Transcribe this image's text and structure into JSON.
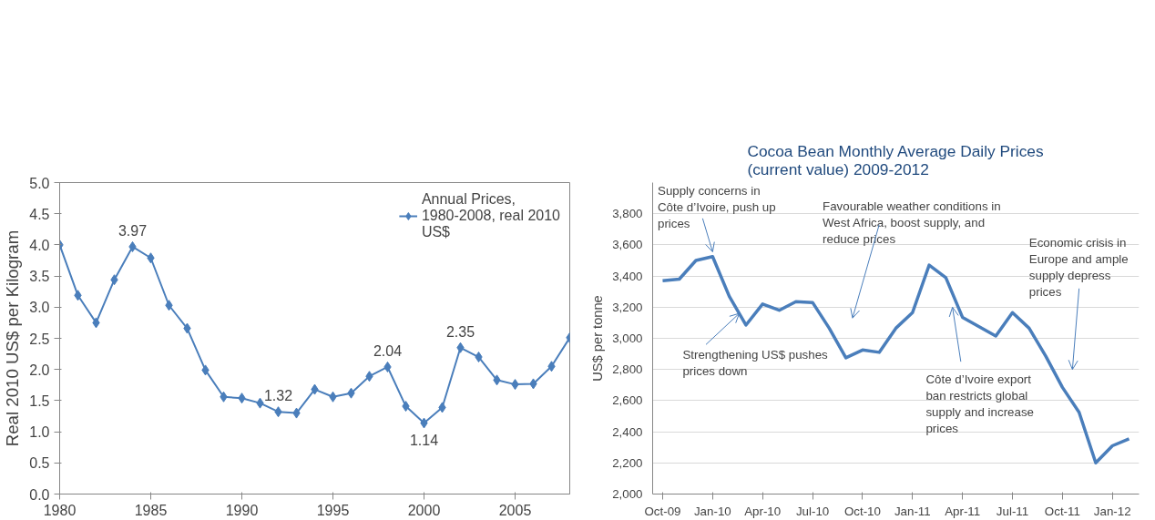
{
  "chart_data": [
    {
      "type": "line",
      "ylabel": "Real 2010 US$ per Kilogram",
      "x": [
        1980,
        1981,
        1982,
        1983,
        1984,
        1985,
        1986,
        1987,
        1988,
        1989,
        1990,
        1991,
        1992,
        1993,
        1994,
        1995,
        1996,
        1997,
        1998,
        1999,
        2000,
        2001,
        2002,
        2003,
        2004,
        2005,
        2006,
        2007,
        2008
      ],
      "series": [
        {
          "name": "Annual Prices, 1980-2008, real 2010 US$",
          "color": "#4a7ebb",
          "values": [
            4.0,
            3.19,
            2.75,
            3.44,
            3.97,
            3.79,
            3.03,
            2.66,
            1.99,
            1.56,
            1.54,
            1.46,
            1.32,
            1.3,
            1.68,
            1.56,
            1.62,
            1.89,
            2.04,
            1.41,
            1.14,
            1.39,
            2.35,
            2.2,
            1.83,
            1.76,
            1.77,
            2.05,
            2.51
          ]
        }
      ],
      "xlim": [
        1980,
        2008
      ],
      "xticks": [
        1980,
        1985,
        1990,
        1995,
        2000,
        2005
      ],
      "ylim": [
        0,
        5
      ],
      "yticks": [
        {
          "value": 0,
          "label": "0.0"
        },
        {
          "value": 0.5,
          "label": "0.5"
        },
        {
          "value": 1,
          "label": "1.0"
        },
        {
          "value": 1.5,
          "label": "1.5"
        },
        {
          "value": 2,
          "label": "2.0"
        },
        {
          "value": 2.5,
          "label": "2.5"
        },
        {
          "value": 3,
          "label": "3.0"
        },
        {
          "value": 3.5,
          "label": "3.5"
        },
        {
          "value": 4,
          "label": "4.0"
        },
        {
          "value": 4.5,
          "label": "4.5"
        },
        {
          "value": 5,
          "label": "5.0"
        }
      ],
      "annotations": [
        {
          "text": "3.97",
          "x": 1984,
          "y": 3.97
        },
        {
          "text": "1.32",
          "x": 1992,
          "y": 1.32
        },
        {
          "text": "2.04",
          "x": 1998,
          "y": 2.04
        },
        {
          "text": "1.14",
          "x": 2000,
          "y": 1.14
        },
        {
          "text": "2.35",
          "x": 2002,
          "y": 2.35
        }
      ],
      "grid": false,
      "legend": "top right",
      "marker": "diamond",
      "line_style": "solid"
    },
    {
      "type": "line",
      "title": "Cocoa Bean Monthly Average Daily Prices (current value) 2009-2012",
      "ylabel": "US$ per tonne",
      "categories": [
        "Oct-09",
        null,
        null,
        "Jan-10",
        null,
        null,
        "Apr-10",
        null,
        null,
        "Jul-10",
        null,
        null,
        "Oct-10",
        null,
        null,
        "Jan-11",
        null,
        null,
        "Apr-11",
        null,
        null,
        "Jul-11",
        null,
        null,
        "Oct-11",
        null,
        null,
        "Jan-12",
        null
      ],
      "series": [
        {
          "color": "#4a7ebb",
          "values": [
            3370,
            3380,
            3500,
            3525,
            3270,
            3085,
            3220,
            3180,
            3235,
            3230,
            3065,
            2875,
            2925,
            2910,
            3065,
            3165,
            3470,
            3390,
            3135,
            3075,
            3015,
            3165,
            3065,
            2885,
            2685,
            2525,
            2200,
            2310,
            2355
          ]
        }
      ],
      "ylim": [
        2000,
        4000
      ],
      "yticks": [
        {
          "value": 2000,
          "label": "2,000"
        },
        {
          "value": 2200,
          "label": "2,200"
        },
        {
          "value": 2400,
          "label": "2,400"
        },
        {
          "value": 2600,
          "label": "2,600"
        },
        {
          "value": 2800,
          "label": "2,800"
        },
        {
          "value": 3000,
          "label": "3,000"
        },
        {
          "value": 3200,
          "label": "3,200"
        },
        {
          "value": 3400,
          "label": "3,400"
        },
        {
          "value": 3600,
          "label": "3,600"
        },
        {
          "value": 3800,
          "label": "3,800"
        }
      ],
      "annotations": [
        {
          "text": "Supply concerns in Côte d’Ivoire, push up prices",
          "x": "Jan-10",
          "y": 3525
        },
        {
          "text": "Strengthening US$ pushes prices down",
          "y": 3160
        },
        "Favourable weather conditions in West Africa, boost supply, and reduce prices",
        "Côte d’Ivoire export ban restricts global supply and increase prices",
        "Economic crisis in Europe and ample supply depress prices"
      ],
      "grid": "y",
      "marker": "none",
      "line_style": "solid"
    }
  ]
}
